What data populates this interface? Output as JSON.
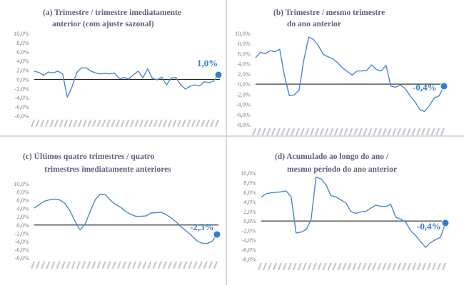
{
  "chart_data": [
    {
      "type": "line",
      "title": "(a) Trimestre / trimestre imediatamente",
      "subtitle": "anterior (com ajuste sazonal)",
      "ylim": [
        -8,
        10
      ],
      "yticks": [
        "10,0%",
        "8,0%",
        "6,0%",
        "4,0%",
        "2,0%",
        "0,0%",
        "-2,0%",
        "-4,0%",
        "-6,0%",
        "-8,0%"
      ],
      "grid": false,
      "legend": "none",
      "color": "#4a86d0",
      "values": [
        1.8,
        1.5,
        0.9,
        1.6,
        1.4,
        1.8,
        1.2,
        -3.9,
        -1.6,
        1.5,
        2.5,
        2.5,
        1.8,
        1.4,
        1.2,
        1.3,
        1.2,
        1.4,
        0.2,
        0.4,
        0.1,
        1.0,
        1.8,
        0.4,
        2.3,
        0.3,
        -0.1,
        0.5,
        -1.2,
        0.3,
        0.4,
        -1.2,
        -2.1,
        -1.5,
        -1.2,
        -1.4,
        -0.5,
        -0.7,
        -0.4,
        1.0
      ],
      "end_label": "1,0%"
    },
    {
      "type": "line",
      "title": "(b) Trimestre / mesmo trimestre",
      "subtitle": "do ano anterior",
      "ylim": [
        -8,
        10
      ],
      "yticks": [
        "10,0%",
        "8,0%",
        "6,0%",
        "4,0%",
        "2,0%",
        "0,0%",
        "-2,0%",
        "-4,0%",
        "-6,0%",
        "-8,0%"
      ],
      "grid": false,
      "legend": "none",
      "color": "#4a86d0",
      "values": [
        5.2,
        6.3,
        6.0,
        6.6,
        6.4,
        6.9,
        1.6,
        -2.3,
        -2.1,
        -1.2,
        4.8,
        9.3,
        8.8,
        7.6,
        5.9,
        5.4,
        5.0,
        4.2,
        3.2,
        2.5,
        1.8,
        2.6,
        2.6,
        2.7,
        3.8,
        2.9,
        2.6,
        3.7,
        -0.4,
        -0.6,
        -0.2,
        -0.9,
        -2.3,
        -3.5,
        -5.0,
        -5.4,
        -4.2,
        -2.7,
        -2.3,
        -0.4
      ],
      "end_label": "-0,4%"
    },
    {
      "type": "line",
      "title": "(c) Últimos quatro trimestres / quatro",
      "subtitle": "trimestres imediatamente anteriores",
      "ylim": [
        -8,
        10
      ],
      "yticks": [
        "10,0%",
        "8,0%",
        "6,0%",
        "4,0%",
        "2,0%",
        "0,0%",
        "-2,0%",
        "-4,0%",
        "-6,0%",
        "-8,0%"
      ],
      "grid": false,
      "legend": "none",
      "color": "#4a86d0",
      "values": [
        4.1,
        5.0,
        5.8,
        6.1,
        6.3,
        6.1,
        5.3,
        3.5,
        1.0,
        -1.2,
        0.2,
        3.2,
        6.1,
        7.5,
        7.4,
        6.0,
        5.0,
        4.3,
        3.3,
        2.6,
        2.1,
        2.1,
        2.2,
        2.9,
        3.0,
        3.1,
        2.5,
        1.7,
        0.7,
        -0.5,
        -1.5,
        -2.6,
        -3.8,
        -4.4,
        -4.5,
        -4.0,
        -2.3
      ],
      "end_label": "-2,3%"
    },
    {
      "type": "line",
      "title": "(d) Acumulado ao longo do ano /",
      "subtitle": "mesmo período do ano anterior",
      "ylim": [
        -8,
        10
      ],
      "yticks": [
        "10,0%",
        "8,0%",
        "6,0%",
        "4,0%",
        "2,0%",
        "0,0%",
        "-2,0%",
        "-4,0%",
        "-6,0%",
        "-8,0%"
      ],
      "grid": false,
      "legend": "none",
      "color": "#4a86d0",
      "values": [
        5.0,
        5.7,
        5.9,
        6.0,
        6.1,
        6.3,
        5.1,
        -2.5,
        -2.3,
        -1.8,
        0.2,
        9.2,
        8.8,
        7.6,
        5.3,
        5.0,
        4.4,
        3.8,
        2.0,
        1.6,
        1.9,
        2.0,
        2.7,
        3.3,
        3.1,
        3.0,
        3.5,
        0.8,
        0.4,
        -0.2,
        -2.0,
        -3.0,
        -4.3,
        -5.5,
        -4.5,
        -3.9,
        -3.4,
        -0.4
      ],
      "end_label": "-0,4%"
    }
  ]
}
